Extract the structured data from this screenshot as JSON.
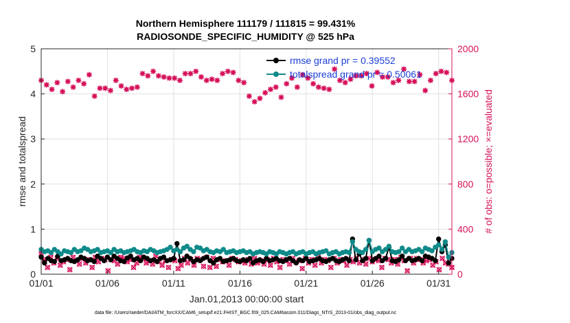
{
  "chart_data": {
    "type": "line",
    "title": "Northern Hemisphere 111179 / 111815 = 99.431%",
    "subtitle": "RADIOSONDE_SPECIFIC_HUMIDITY @ 525 hPa",
    "xlabel": "Jan.01,2013 00:00:00 start",
    "ylabel": "rmse and totalspread",
    "y2label": "# of obs: o=possible; ×=evaluated",
    "footer": "data file: /Users/raeder/DAI/ATM_forcXX/CAM6_setup/f.e21.FHIST_BGC.f09_025.CAM6assim.011/Diags_NTrS_2013-01/obs_diag_output.nc",
    "xlim": [
      1,
      32
    ],
    "ylim": [
      0,
      5
    ],
    "y2lim": [
      0,
      2000
    ],
    "xticks": [
      1,
      6,
      11,
      16,
      21,
      26,
      31
    ],
    "xtick_labels": [
      "01/01",
      "01/06",
      "01/11",
      "01/16",
      "01/21",
      "01/26",
      "01/31"
    ],
    "yticks": [
      0,
      1,
      2,
      3,
      4,
      5
    ],
    "ytick_labels": [
      "0",
      "1",
      "2",
      "3",
      "4",
      "5"
    ],
    "y2ticks": [
      0,
      400,
      800,
      1200,
      1600,
      2000
    ],
    "y2tick_labels": [
      "0",
      "400",
      "800",
      "1200",
      "1600",
      "2000"
    ],
    "grid": true,
    "legend_position": "top-right",
    "colors": {
      "rmse": "#000000",
      "spread": "#0f8a8a",
      "obs": "#d6115a",
      "legend_text": "#1a3fd8"
    },
    "series": [
      {
        "name": "rmse grand pr = 0.39552",
        "key": "rmse",
        "values": [
          0.38,
          0.25,
          0.35,
          0.3,
          0.28,
          0.4,
          0.3,
          0.32,
          0.35,
          0.3,
          0.28,
          0.32,
          0.38,
          0.35,
          0.3,
          0.32,
          0.28,
          0.4,
          0.35,
          0.3,
          0.38,
          0.32,
          0.4,
          0.35,
          0.3,
          0.28,
          0.36,
          0.4,
          0.32,
          0.35,
          0.3,
          0.38,
          0.35,
          0.3,
          0.32,
          0.28,
          0.35,
          0.38,
          0.3,
          0.32,
          0.35,
          0.68,
          0.3,
          0.32,
          0.4,
          0.35,
          0.28,
          0.32,
          0.3,
          0.35,
          0.38,
          0.3,
          0.25,
          0.32,
          0.35,
          0.28,
          0.3,
          0.32,
          0.35,
          0.3,
          0.28,
          0.32,
          0.3,
          0.35,
          0.25,
          0.3,
          0.32,
          0.28,
          0.35,
          0.3,
          0.32,
          0.35,
          0.3,
          0.28,
          0.32,
          0.35,
          0.3,
          0.25,
          0.32,
          0.3,
          0.35,
          0.28,
          0.3,
          0.32,
          0.35,
          0.3,
          0.28,
          0.32,
          0.35,
          0.3,
          0.28,
          0.32,
          0.35,
          0.3,
          0.78,
          0.32,
          0.45,
          0.3,
          0.35,
          0.75,
          0.3,
          0.35,
          0.4,
          0.3,
          0.35,
          0.6,
          0.3,
          0.28,
          0.32,
          0.4,
          0.3,
          0.35,
          0.3,
          0.32,
          0.35,
          0.3,
          0.4,
          0.38,
          0.35,
          0.3,
          0.78,
          0.5,
          0.65,
          0.25,
          0.35
        ]
      },
      {
        "name": "totalspread grand pr = 0.50061",
        "key": "spread",
        "values": [
          0.55,
          0.5,
          0.52,
          0.48,
          0.55,
          0.5,
          0.45,
          0.52,
          0.5,
          0.48,
          0.55,
          0.5,
          0.52,
          0.58,
          0.55,
          0.5,
          0.52,
          0.55,
          0.48,
          0.5,
          0.52,
          0.48,
          0.55,
          0.5,
          0.52,
          0.48,
          0.5,
          0.52,
          0.55,
          0.5,
          0.48,
          0.52,
          0.5,
          0.55,
          0.52,
          0.48,
          0.5,
          0.52,
          0.55,
          0.6,
          0.52,
          0.55,
          0.5,
          0.58,
          0.62,
          0.55,
          0.5,
          0.6,
          0.58,
          0.52,
          0.55,
          0.5,
          0.48,
          0.52,
          0.5,
          0.55,
          0.48,
          0.5,
          0.52,
          0.48,
          0.5,
          0.52,
          0.48,
          0.5,
          0.45,
          0.48,
          0.5,
          0.48,
          0.45,
          0.5,
          0.48,
          0.45,
          0.5,
          0.48,
          0.45,
          0.48,
          0.5,
          0.45,
          0.48,
          0.5,
          0.45,
          0.48,
          0.5,
          0.45,
          0.48,
          0.5,
          0.52,
          0.45,
          0.48,
          0.5,
          0.45,
          0.48,
          0.5,
          0.48,
          0.72,
          0.55,
          0.5,
          0.48,
          0.55,
          0.75,
          0.5,
          0.55,
          0.58,
          0.5,
          0.55,
          0.62,
          0.5,
          0.48,
          0.5,
          0.58,
          0.5,
          0.55,
          0.5,
          0.52,
          0.55,
          0.5,
          0.58,
          0.55,
          0.52,
          0.6,
          0.65,
          0.55,
          0.72,
          0.38,
          0.48
        ]
      },
      {
        "name": "# of obs: o=possible",
        "key": "obs_possible",
        "axis": "right",
        "values": [
          1720,
          1680,
          1640,
          1700,
          1620,
          1710,
          1660,
          1720,
          1690,
          1770,
          1580,
          1650,
          1650,
          1630,
          1720,
          1670,
          1640,
          1650,
          1660,
          1780,
          1760,
          1800,
          1760,
          1750,
          1740,
          1740,
          1720,
          1780,
          1780,
          1800,
          1750,
          1720,
          1730,
          1720,
          1780,
          1800,
          1790,
          1720,
          1700,
          1580,
          1530,
          1560,
          1610,
          1640,
          1660,
          1570,
          1690,
          1740,
          1660,
          1770,
          1740,
          1690,
          1660,
          1650,
          1640,
          1820,
          1720,
          1700,
          1730,
          1760,
          1760,
          1780,
          1670,
          1790,
          1750,
          1750,
          1700,
          1720,
          1820,
          1710,
          1710,
          1770,
          1630,
          1720,
          1780,
          1800,
          1790,
          1720
        ]
      },
      {
        "name": "# of obs: ×=evaluated",
        "key": "obs_evaluated",
        "axis": "right",
        "values": [
          180,
          130,
          60,
          150,
          100,
          140,
          80,
          110,
          130,
          40,
          150,
          120,
          90,
          140,
          100,
          130,
          60,
          150,
          110,
          140,
          130,
          30,
          130,
          120,
          90,
          150,
          140,
          110,
          130,
          60,
          100,
          150,
          140,
          100,
          120,
          90,
          160,
          110,
          80,
          120,
          60,
          130,
          120,
          50,
          80,
          140,
          100,
          130,
          80,
          140,
          130,
          70,
          150,
          60,
          140,
          70,
          130,
          110,
          120,
          80,
          140,
          130,
          110,
          120,
          100,
          130,
          90,
          140,
          100,
          120,
          90,
          130,
          80,
          140,
          110,
          60,
          130,
          120,
          90,
          140,
          110,
          120,
          50,
          140,
          100,
          130,
          80,
          150,
          100,
          130,
          120,
          60,
          140,
          100,
          130,
          120,
          80,
          130,
          110,
          140,
          100,
          130,
          90,
          140,
          110,
          130,
          120,
          60,
          140,
          130,
          100,
          130,
          90,
          150,
          120,
          30,
          140,
          100,
          140,
          130,
          100,
          120,
          130,
          80,
          110,
          40,
          140,
          100,
          90,
          60
        ]
      }
    ]
  }
}
